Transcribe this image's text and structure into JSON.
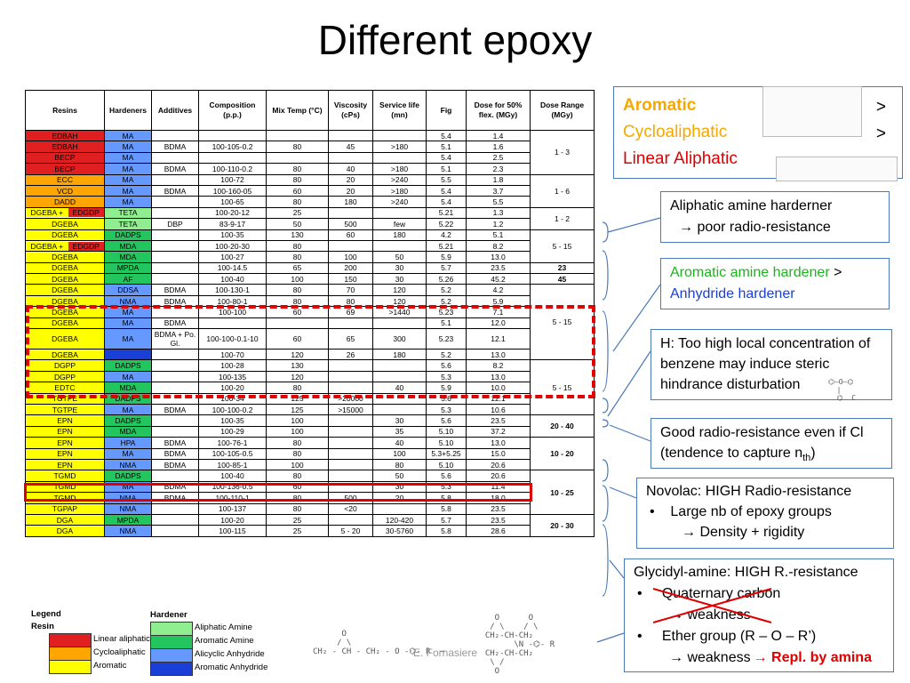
{
  "title": "Different epoxy",
  "colors": {
    "linear": "#e02020",
    "cyclo": "#ffa500",
    "arom": "#ffff00",
    "aliph_amine": "#90ee90",
    "arom_amine": "#22c55e",
    "alicyclic": "#6699ff",
    "arom_anh": "#1a3fd6"
  },
  "headers": [
    "Resins",
    "Hardeners",
    "Additives",
    "Composition (p.p.)",
    "Mix Temp (°C)",
    "Viscosity (cPs)",
    "Service life (mn)",
    "Fig",
    "Dose for 50% flex. (MGy)",
    "Dose Range (MGy)"
  ],
  "rows": [
    {
      "r": "EDBAH",
      "rc": "linear",
      "h": "MA",
      "hc": "alicyclic",
      "a": "",
      "c": "",
      "t": "",
      "v": "",
      "s": "",
      "f": "5.4",
      "d": "1.4"
    },
    {
      "r": "EDBAH",
      "rc": "linear",
      "h": "MA",
      "hc": "alicyclic",
      "a": "BDMA",
      "c": "100-105-0.2",
      "t": "80",
      "v": "45",
      "s": ">180",
      "f": "5.1",
      "d": "1.6"
    },
    {
      "r": "BECP",
      "rc": "linear",
      "h": "MA",
      "hc": "alicyclic",
      "a": "",
      "c": "",
      "t": "",
      "v": "",
      "s": "",
      "f": "5.4",
      "d": "2.5"
    },
    {
      "r": "BECP",
      "rc": "linear",
      "h": "MA",
      "hc": "alicyclic",
      "a": "BDMA",
      "c": "100-110-0.2",
      "t": "80",
      "v": "40",
      "s": ">180",
      "f": "5.1",
      "d": "2.3"
    },
    {
      "r": "ECC",
      "rc": "cyclo",
      "h": "MA",
      "hc": "alicyclic",
      "a": "",
      "c": "100-72",
      "t": "80",
      "v": "20",
      "s": ">240",
      "f": "5.5",
      "d": "1.8"
    },
    {
      "r": "VCD",
      "rc": "cyclo",
      "h": "MA",
      "hc": "alicyclic",
      "a": "BDMA",
      "c": "100-160-05",
      "t": "60",
      "v": "20",
      "s": ">180",
      "f": "5.4",
      "d": "3.7"
    },
    {
      "r": "DADD",
      "rc": "cyclo",
      "h": "MA",
      "hc": "alicyclic",
      "a": "",
      "c": "100-65",
      "t": "80",
      "v": "180",
      "s": ">240",
      "f": "5.4",
      "d": "5.5"
    },
    {
      "r": "DGEBA +",
      "r2": "EDGDP",
      "rc": "arom",
      "rc2": "linear",
      "h": "TETA",
      "hc": "aliph_amine",
      "a": "",
      "c": "100-20-12",
      "t": "25",
      "v": "",
      "s": "",
      "f": "5.21",
      "d": "1.3"
    },
    {
      "r": "DGEBA",
      "rc": "arom",
      "h": "TETA",
      "hc": "aliph_amine",
      "a": "DBP",
      "c": "83-9-17",
      "t": "50",
      "v": "500",
      "s": "few",
      "f": "5.22",
      "d": "1.2"
    },
    {
      "r": "DGEBA",
      "rc": "arom",
      "h": "DADPS",
      "hc": "arom_amine",
      "a": "",
      "c": "100-35",
      "t": "130",
      "v": "60",
      "s": "180",
      "f": "4.2",
      "d": "5.1"
    },
    {
      "r": "DGEBA +",
      "r2": "EDGDP",
      "rc": "arom",
      "rc2": "linear",
      "h": "MDA",
      "hc": "arom_amine",
      "a": "",
      "c": "100-20-30",
      "t": "80",
      "v": "",
      "s": "",
      "f": "5.21",
      "d": "8.2"
    },
    {
      "r": "DGEBA",
      "rc": "arom",
      "h": "MDA",
      "hc": "arom_amine",
      "a": "",
      "c": "100-27",
      "t": "80",
      "v": "100",
      "s": "50",
      "f": "5.9",
      "d": "13.0"
    },
    {
      "r": "DGEBA",
      "rc": "arom",
      "h": "MPDA",
      "hc": "arom_amine",
      "a": "",
      "c": "100-14.5",
      "t": "65",
      "v": "200",
      "s": "30",
      "f": "5.7",
      "d": "23.5"
    },
    {
      "r": "DGEBA",
      "rc": "arom",
      "h": "AF",
      "hc": "arom_amine",
      "a": "",
      "c": "100-40",
      "t": "100",
      "v": "150",
      "s": "30",
      "f": "5.26",
      "d": "45.2"
    },
    {
      "r": "DGEBA",
      "rc": "arom",
      "h": "DDSA",
      "hc": "alicyclic",
      "a": "BDMA",
      "c": "100-130-1",
      "t": "80",
      "v": "70",
      "s": "120",
      "f": "5.2",
      "d": "4.2"
    },
    {
      "r": "DGEBA",
      "rc": "arom",
      "h": "NMA",
      "hc": "alicyclic",
      "a": "BDMA",
      "c": "100-80-1",
      "t": "80",
      "v": "80",
      "s": "120",
      "f": "5.2",
      "d": "5.9"
    },
    {
      "r": "DGEBA",
      "rc": "arom",
      "h": "MA",
      "hc": "alicyclic",
      "a": "",
      "c": "100-100",
      "t": "60",
      "v": "69",
      "s": ">1440",
      "f": "5.23",
      "d": "7.1"
    },
    {
      "r": "DGEBA",
      "rc": "arom",
      "h": "MA",
      "hc": "alicyclic",
      "a": "BDMA",
      "c": "",
      "t": "",
      "v": "",
      "s": "",
      "f": "5.1",
      "d": "12.0"
    },
    {
      "r": "DGEBA",
      "rc": "arom",
      "h": "MA",
      "hc": "alicyclic",
      "a": "BDMA + Po. Gl.",
      "c": "100-100-0.1-10",
      "t": "60",
      "v": "65",
      "s": "300",
      "f": "5.23",
      "d": "12.1",
      "tall": true
    },
    {
      "r": "DGEBA",
      "rc": "arom",
      "h": "",
      "hc": "arom_anh",
      "a": "",
      "c": "100-70",
      "t": "120",
      "v": "26",
      "s": "180",
      "f": "5.2",
      "d": "13.0"
    },
    {
      "r": "DGPP",
      "rc": "arom",
      "h": "DADPS",
      "hc": "arom_amine",
      "a": "",
      "c": "100-28",
      "t": "130",
      "v": "",
      "s": "",
      "f": "5.6",
      "d": "8.2"
    },
    {
      "r": "DGPP",
      "rc": "arom",
      "h": "MA",
      "hc": "alicyclic",
      "a": "",
      "c": "100-135",
      "t": "120",
      "v": "",
      "s": "",
      "f": "5.3",
      "d": "13.0"
    },
    {
      "r": "EDTC",
      "rc": "arom",
      "h": "MDA",
      "hc": "arom_amine",
      "a": "",
      "c": "100-20",
      "t": "80",
      "v": "",
      "s": "40",
      "f": "5.9",
      "d": "10.0"
    },
    {
      "r": "TGTPE",
      "rc": "arom",
      "h": "DADPS",
      "hc": "arom_amine",
      "a": "",
      "c": "100-34",
      "t": "125",
      "v": ">20000",
      "s": "",
      "f": "5.6",
      "d": "12.1"
    },
    {
      "r": "TGTPE",
      "rc": "arom",
      "h": "MA",
      "hc": "alicyclic",
      "a": "BDMA",
      "c": "100-100-0.2",
      "t": "125",
      "v": ">15000",
      "s": "",
      "f": "5.3",
      "d": "10.6"
    },
    {
      "r": "EPN",
      "rc": "arom",
      "h": "DADPS",
      "hc": "arom_amine",
      "a": "",
      "c": "100-35",
      "t": "100",
      "v": "",
      "s": "30",
      "f": "5.6",
      "d": "23.5"
    },
    {
      "r": "EPN",
      "rc": "arom",
      "h": "MDA",
      "hc": "arom_amine",
      "a": "",
      "c": "100-29",
      "t": "100",
      "v": "",
      "s": "35",
      "f": "5.10",
      "d": "37.2"
    },
    {
      "r": "EPN",
      "rc": "arom",
      "h": "HPA",
      "hc": "alicyclic",
      "a": "BDMA",
      "c": "100-76-1",
      "t": "80",
      "v": "",
      "s": "40",
      "f": "5.10",
      "d": "13.0"
    },
    {
      "r": "EPN",
      "rc": "arom",
      "h": "MA",
      "hc": "alicyclic",
      "a": "BDMA",
      "c": "100-105-0.5",
      "t": "80",
      "v": "",
      "s": "100",
      "f": "5.3+5.25",
      "d": "15.0"
    },
    {
      "r": "EPN",
      "rc": "arom",
      "h": "NMA",
      "hc": "alicyclic",
      "a": "BDMA",
      "c": "100-85-1",
      "t": "100",
      "v": "",
      "s": "80",
      "f": "5.10",
      "d": "20.6"
    },
    {
      "r": "TGMD",
      "rc": "arom",
      "h": "DADPS",
      "hc": "arom_amine",
      "a": "",
      "c": "100-40",
      "t": "80",
      "v": "",
      "s": "50",
      "f": "5.6",
      "d": "20.6"
    },
    {
      "r": "TGMD",
      "rc": "arom",
      "h": "MA",
      "hc": "alicyclic",
      "a": "BDMA",
      "c": "100-136-0.5",
      "t": "60",
      "v": "",
      "s": "30",
      "f": "5.3",
      "d": "11.4"
    },
    {
      "r": "TGMD",
      "rc": "arom",
      "h": "NMA",
      "hc": "alicyclic",
      "a": "BDMA",
      "c": "100-110-1",
      "t": "80",
      "v": "500",
      "s": "20",
      "f": "5.8",
      "d": "18.0"
    },
    {
      "r": "TGPAP",
      "rc": "arom",
      "h": "NMA",
      "hc": "alicyclic",
      "a": "",
      "c": "100-137",
      "t": "80",
      "v": "<20",
      "s": "",
      "f": "5.8",
      "d": "23.5"
    },
    {
      "r": "DGA",
      "rc": "arom",
      "h": "MPDA",
      "hc": "arom_amine",
      "a": "",
      "c": "100-20",
      "t": "25",
      "v": "",
      "s": "120-420",
      "f": "5.7",
      "d": "23.5"
    },
    {
      "r": "DGA",
      "rc": "arom",
      "h": "NMA",
      "hc": "alicyclic",
      "a": "",
      "c": "100-115",
      "t": "25",
      "v": "5 - 20",
      "s": "30-5760",
      "f": "5.8",
      "d": "28.6"
    }
  ],
  "ranges": [
    {
      "start": 0,
      "span": 4,
      "text": "1 - 3",
      "bold": false
    },
    {
      "start": 4,
      "span": 3,
      "text": "1 - 6",
      "bold": false
    },
    {
      "start": 7,
      "span": 2,
      "text": "1 - 2",
      "bold": false
    },
    {
      "start": 9,
      "span": 3,
      "text": "5 - 15",
      "bold": false
    },
    {
      "start": 12,
      "span": 1,
      "text": "23",
      "bold": true
    },
    {
      "start": 13,
      "span": 1,
      "text": "45",
      "bold": true
    },
    {
      "start": 14,
      "span": 6,
      "text": "5 - 15",
      "bold": false
    },
    {
      "start": 20,
      "span": 5,
      "text": "5 - 15",
      "bold": false
    },
    {
      "start": 25,
      "span": 2,
      "text": "20 - 40",
      "bold": true
    },
    {
      "start": 27,
      "span": 3,
      "text": "10 - 20",
      "bold": true
    },
    {
      "start": 30,
      "span": 4,
      "text": "10 - 25",
      "bold": true
    },
    {
      "start": 34,
      "span": 2,
      "text": "20 - 30",
      "bold": true
    }
  ],
  "top_box": {
    "aromatic": "Aromatic",
    "cyclo": "Cycloaliphatic",
    "linear": "Linear Aliphatic",
    "gt": ">"
  },
  "box1": {
    "line1": "Aliphatic amine harderner",
    "line2": "→ poor radio-resistance"
  },
  "box2": {
    "green": "Aromatic amine hardener",
    "gt": ">",
    "blue": "Anhydride hardener"
  },
  "box3": {
    "text": "H: Too high local concentration of benzene may induce steric hindrance disturbation"
  },
  "box4": {
    "text": "Good radio-resistance even if Cl (tendence to capture n",
    "sub": "th",
    ")": ")"
  },
  "box5": {
    "title": "Novolac: HIGH Radio-resistance",
    "bullet": "Large nb of epoxy groups",
    "arrow": "→ Density + rigidity"
  },
  "box6": {
    "title": "Glycidyl-amine: HIGH R.-resistance",
    "b1": "Quaternary carbon",
    "b1a": "→ weakness",
    "b2": "Ether group (R – O – R’)",
    "b2a": "→ weakness",
    "repl": "→ Repl. by amina"
  },
  "legend": {
    "title": "Legend",
    "resin": "Resin",
    "hardener": "Hardener",
    "resin_items": [
      "Linear aliphatic",
      "Cycloaliphatic",
      "Aromatic"
    ],
    "hardener_items": [
      "Aliphatic Amine",
      "Aromatic Amine",
      "Alicyclic Anhydride",
      "Aromatic Anhydride"
    ]
  },
  "watermark": "E. Fornasiere"
}
